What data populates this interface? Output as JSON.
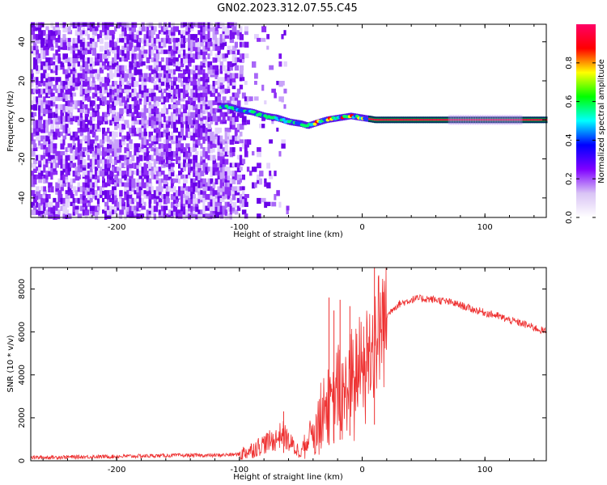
{
  "title": "GN02.2023.312.07.55.C45",
  "chart_data": [
    {
      "type": "heatmap",
      "xlabel": "Height of straight line (km)",
      "ylabel": "Frequency (Hz)",
      "xlim": [
        -270,
        150
      ],
      "ylim": [
        -50,
        49
      ],
      "xticks": [
        -200,
        -100,
        0,
        100
      ],
      "yticks": [
        -40,
        -20,
        0,
        20,
        40
      ],
      "colorbar": {
        "label": "Normalized spectral amplitude",
        "range": [
          0,
          1
        ],
        "ticks": [
          0.0,
          0.2,
          0.4,
          0.6,
          0.8
        ],
        "colormap": [
          "#ffffff",
          "#d9c4f5",
          "#7f00ff",
          "#0000ff",
          "#00ffff",
          "#00ff00",
          "#ffff00",
          "#ff0000",
          "#ff0066"
        ]
      },
      "ridge": {
        "x": [
          -110,
          -100,
          -90,
          -80,
          -70,
          -60,
          -50,
          -45,
          -40,
          -30,
          -20,
          -10,
          0,
          10,
          150
        ],
        "freq": [
          7,
          5,
          4,
          2,
          1,
          -1,
          -2,
          -3,
          -2,
          0,
          1,
          2,
          1,
          0,
          0
        ]
      }
    },
    {
      "type": "line",
      "xlabel": "Height of straight line (km)",
      "ylabel": "SNR (10 * v/v)",
      "xlim": [
        -270,
        150
      ],
      "ylim": [
        0,
        9000
      ],
      "xticks": [
        -200,
        -100,
        0,
        100
      ],
      "yticks": [
        0,
        2000,
        4000,
        6000,
        8000
      ],
      "color": "#ee3030",
      "envelope": {
        "x": [
          -270,
          -200,
          -150,
          -120,
          -100,
          -90,
          -80,
          -70,
          -65,
          -60,
          -55,
          -50,
          -45,
          -40,
          -35,
          -30,
          -25,
          -20,
          -15,
          -10,
          -5,
          0,
          5,
          10,
          15,
          20,
          25,
          30,
          35,
          40,
          45,
          50,
          60,
          70,
          80,
          90,
          100,
          110,
          120,
          130,
          140,
          150
        ],
        "y": [
          150,
          200,
          250,
          250,
          300,
          500,
          800,
          1000,
          1300,
          900,
          600,
          400,
          1000,
          1500,
          1800,
          2800,
          2200,
          3500,
          2900,
          3900,
          4200,
          4500,
          5000,
          5600,
          6200,
          6700,
          7100,
          7300,
          7400,
          7500,
          7550,
          7550,
          7500,
          7400,
          7250,
          7050,
          6900,
          6750,
          6550,
          6400,
          6200,
          6000
        ]
      },
      "peaks": [
        {
          "x": -64,
          "y": 2300
        },
        {
          "x": -27,
          "y": 7600
        },
        {
          "x": -23,
          "y": 7000
        },
        {
          "x": -18,
          "y": 7500
        },
        {
          "x": -10,
          "y": 7200
        },
        {
          "x": 10,
          "y": 9000
        }
      ]
    }
  ]
}
